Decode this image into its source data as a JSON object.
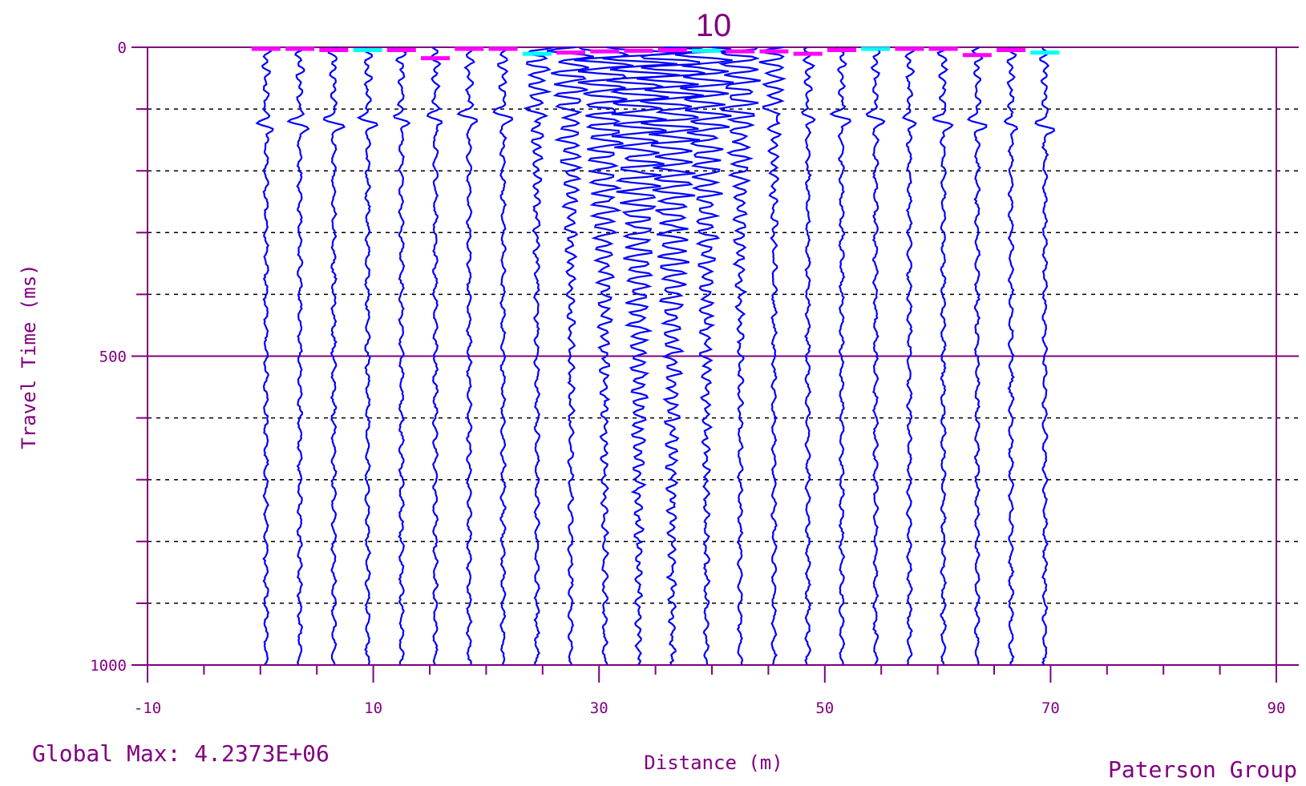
{
  "chart_data": {
    "type": "seismic-wiggle",
    "title": "10",
    "xlabel": "Distance (m)",
    "ylabel": "Travel Time (ms)",
    "xlim": [
      -10,
      90
    ],
    "ylim": [
      0,
      1000
    ],
    "y_inverted": true,
    "x_ticks": [
      -10,
      10,
      30,
      50,
      70,
      90
    ],
    "y_ticks": [
      0,
      500,
      1000
    ],
    "y_gridlines_dotted": [
      100,
      200,
      300,
      400,
      600,
      700,
      800,
      900
    ],
    "y_gridlines_solid": [
      500
    ],
    "trace_positions_m": [
      0.5,
      3.5,
      6.5,
      9.5,
      12.5,
      15.5,
      18.5,
      21.5,
      24.5,
      27.5,
      30.5,
      33.5,
      36.5,
      39.5,
      42.5,
      45.5,
      48.5,
      51.5,
      54.5,
      57.5,
      60.5,
      63.5,
      66.5,
      69.5
    ],
    "shot_position_m": 35,
    "first_break_ms": [
      0,
      0,
      2,
      2,
      2,
      15,
      0,
      0,
      8,
      6,
      4,
      3,
      2,
      3,
      4,
      4,
      8,
      2,
      0,
      0,
      0,
      10,
      2,
      6
    ],
    "colors": {
      "trace": "#0000ff",
      "axis": "#800080",
      "grid": "#000000",
      "pick_marker": "#ff00ff",
      "pick_marker_alt": "#00ffff"
    }
  },
  "footer": {
    "global_max": "Global Max:  4.2373E+06",
    "credit": "Paterson Group"
  }
}
